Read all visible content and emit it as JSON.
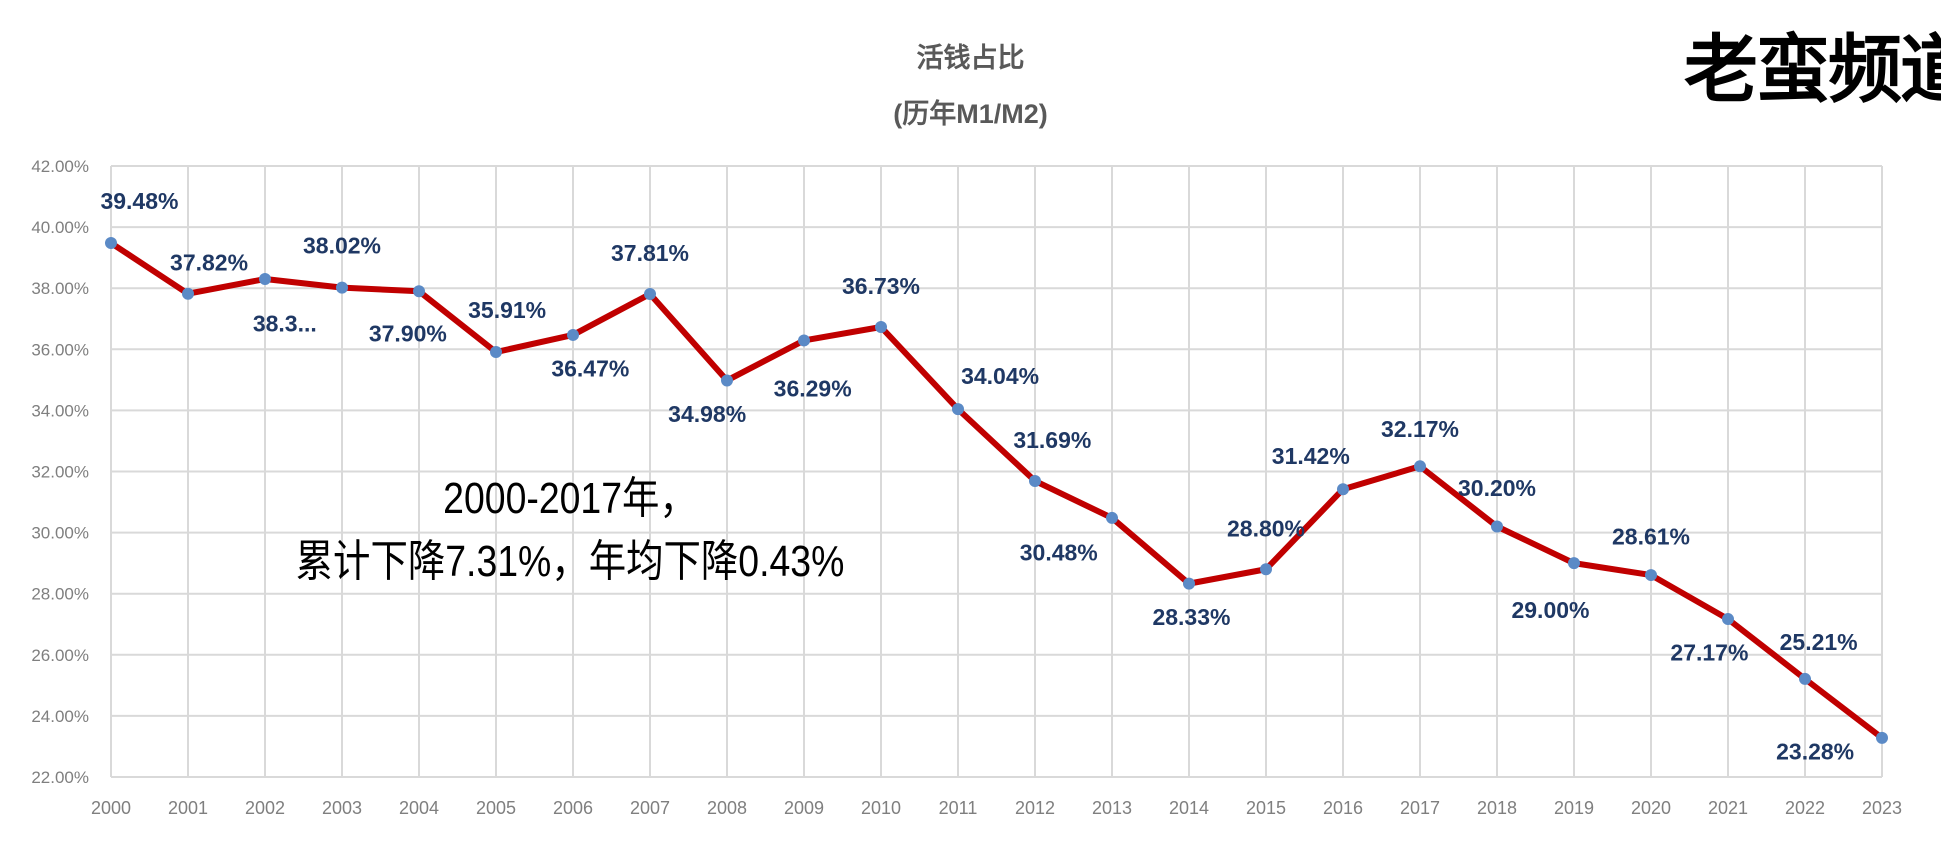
{
  "watermark": "老蛮频道",
  "chart_data": {
    "type": "line",
    "title": "活钱占比",
    "subtitle": "(历年M1/M2)",
    "xlabel": "",
    "ylabel": "",
    "x": [
      "2000",
      "2001",
      "2002",
      "2003",
      "2004",
      "2005",
      "2006",
      "2007",
      "2008",
      "2009",
      "2010",
      "2011",
      "2012",
      "2013",
      "2014",
      "2015",
      "2016",
      "2017",
      "2018",
      "2019",
      "2020",
      "2021",
      "2022",
      "2023"
    ],
    "series": [
      {
        "name": "M1/M2",
        "color": "#c00000",
        "values": [
          39.48,
          37.82,
          38.3,
          38.02,
          37.9,
          35.91,
          36.47,
          37.81,
          34.98,
          36.29,
          36.73,
          34.04,
          31.69,
          30.48,
          28.33,
          28.8,
          31.42,
          32.17,
          30.2,
          29.0,
          28.61,
          27.17,
          25.21,
          23.28
        ]
      }
    ],
    "data_labels": [
      "39.48%",
      "37.82%",
      "38.3...",
      "38.02%",
      "37.90%",
      "35.91%",
      "36.47%",
      "37.81%",
      "34.98%",
      "36.29%",
      "36.73%",
      "34.04%",
      "31.69%",
      "30.48%",
      "28.33%",
      "28.80%",
      "31.42%",
      "32.17%",
      "30.20%",
      "29.00%",
      "28.61%",
      "27.17%",
      "25.21%",
      "23.28%"
    ],
    "ylim": [
      22,
      42
    ],
    "yticks": [
      "22.00%",
      "24.00%",
      "26.00%",
      "28.00%",
      "30.00%",
      "32.00%",
      "34.00%",
      "36.00%",
      "38.00%",
      "40.00%",
      "42.00%"
    ],
    "grid": true,
    "marker_color": "#5b8ac6",
    "label_color": "#1f3864",
    "annotation": [
      "2000-2017年，",
      "累计下降7.31%，年均下降0.43%"
    ]
  }
}
